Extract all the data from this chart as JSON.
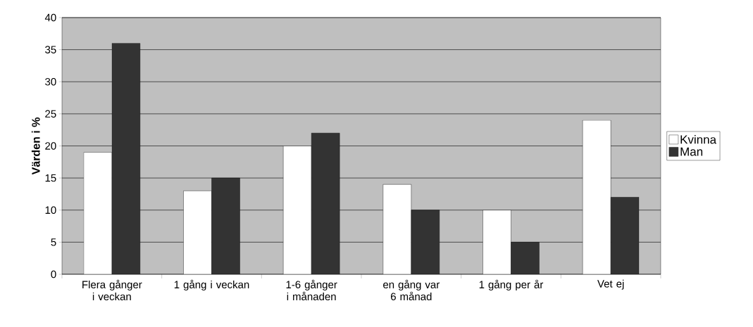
{
  "chart_data": {
    "type": "bar",
    "ylabel": "Värden i %",
    "categories": [
      "Flera gånger i veckan",
      "1 gång i veckan",
      "1-6 gånger i månaden",
      "en gång var 6 månad",
      "1 gång per år",
      "Vet ej"
    ],
    "series": [
      {
        "name": "Kvinna",
        "color": "#ffffff",
        "values": [
          19,
          13,
          20,
          14,
          10,
          24
        ]
      },
      {
        "name": "Man",
        "color": "#333333",
        "values": [
          36,
          15,
          22,
          10,
          5,
          12
        ]
      }
    ],
    "ylim": [
      0,
      40
    ],
    "yticks": [
      0,
      5,
      10,
      15,
      20,
      25,
      30,
      35,
      40
    ],
    "grid": "y",
    "legend": "right"
  }
}
